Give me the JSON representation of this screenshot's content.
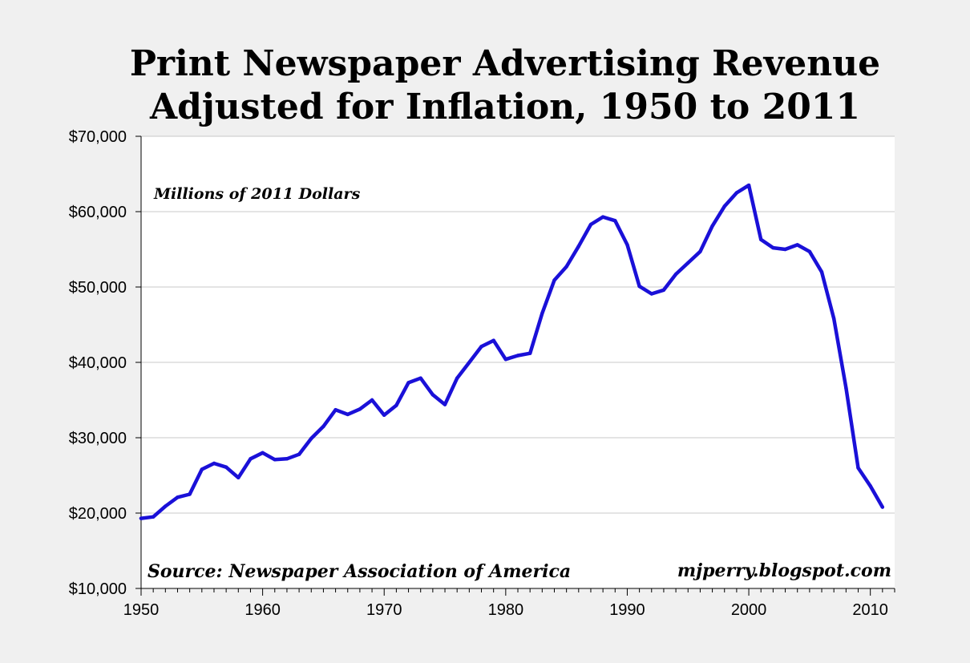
{
  "chart_data": {
    "type": "line",
    "title": "Print Newspaper Advertising Revenue",
    "subtitle": "Adjusted for Inflation, 1950 to 2011",
    "xlabel": "",
    "ylabel": "",
    "xlim": [
      1950,
      2012
    ],
    "ylim": [
      10000,
      70000
    ],
    "x_ticks": [
      1950,
      1960,
      1970,
      1980,
      1990,
      2000,
      2010
    ],
    "y_ticks": [
      10000,
      20000,
      30000,
      40000,
      50000,
      60000,
      70000
    ],
    "y_tick_labels": [
      "$10,000",
      "$20,000",
      "$30,000",
      "$40,000",
      "$50,000",
      "$60,000",
      "$70,000"
    ],
    "grid": "horizontal",
    "units_note": "Millions of 2011 Dollars",
    "source_note": "Source: Newspaper Association of America",
    "credit": "mjperry.blogspot.com",
    "series": [
      {
        "color": "#1a10d8",
        "x": [
          1950,
          1951,
          1952,
          1953,
          1954,
          1955,
          1956,
          1957,
          1958,
          1959,
          1960,
          1961,
          1962,
          1963,
          1964,
          1965,
          1966,
          1967,
          1968,
          1969,
          1970,
          1971,
          1972,
          1973,
          1974,
          1975,
          1976,
          1977,
          1978,
          1979,
          1980,
          1981,
          1982,
          1983,
          1984,
          1985,
          1986,
          1987,
          1988,
          1989,
          1990,
          1991,
          1992,
          1993,
          1994,
          1995,
          1996,
          1997,
          1998,
          1999,
          2000,
          2001,
          2002,
          2003,
          2004,
          2005,
          2006,
          2007,
          2008,
          2009,
          2010,
          2011
        ],
        "values": [
          19300,
          19500,
          20900,
          22100,
          22500,
          25800,
          26600,
          26100,
          24700,
          27200,
          28000,
          27100,
          27200,
          27800,
          29900,
          31500,
          33700,
          33100,
          33800,
          35000,
          33000,
          34300,
          37300,
          37900,
          35700,
          34400,
          37900,
          40000,
          42100,
          42900,
          40400,
          40900,
          41200,
          46500,
          50900,
          52700,
          55400,
          58300,
          59300,
          58800,
          55600,
          50100,
          49100,
          49600,
          51700,
          53200,
          54700,
          58100,
          60700,
          62500,
          63500,
          56300,
          55200,
          55000,
          55600,
          54700,
          52000,
          45800,
          36600,
          26000,
          23600,
          20800
        ]
      }
    ]
  }
}
